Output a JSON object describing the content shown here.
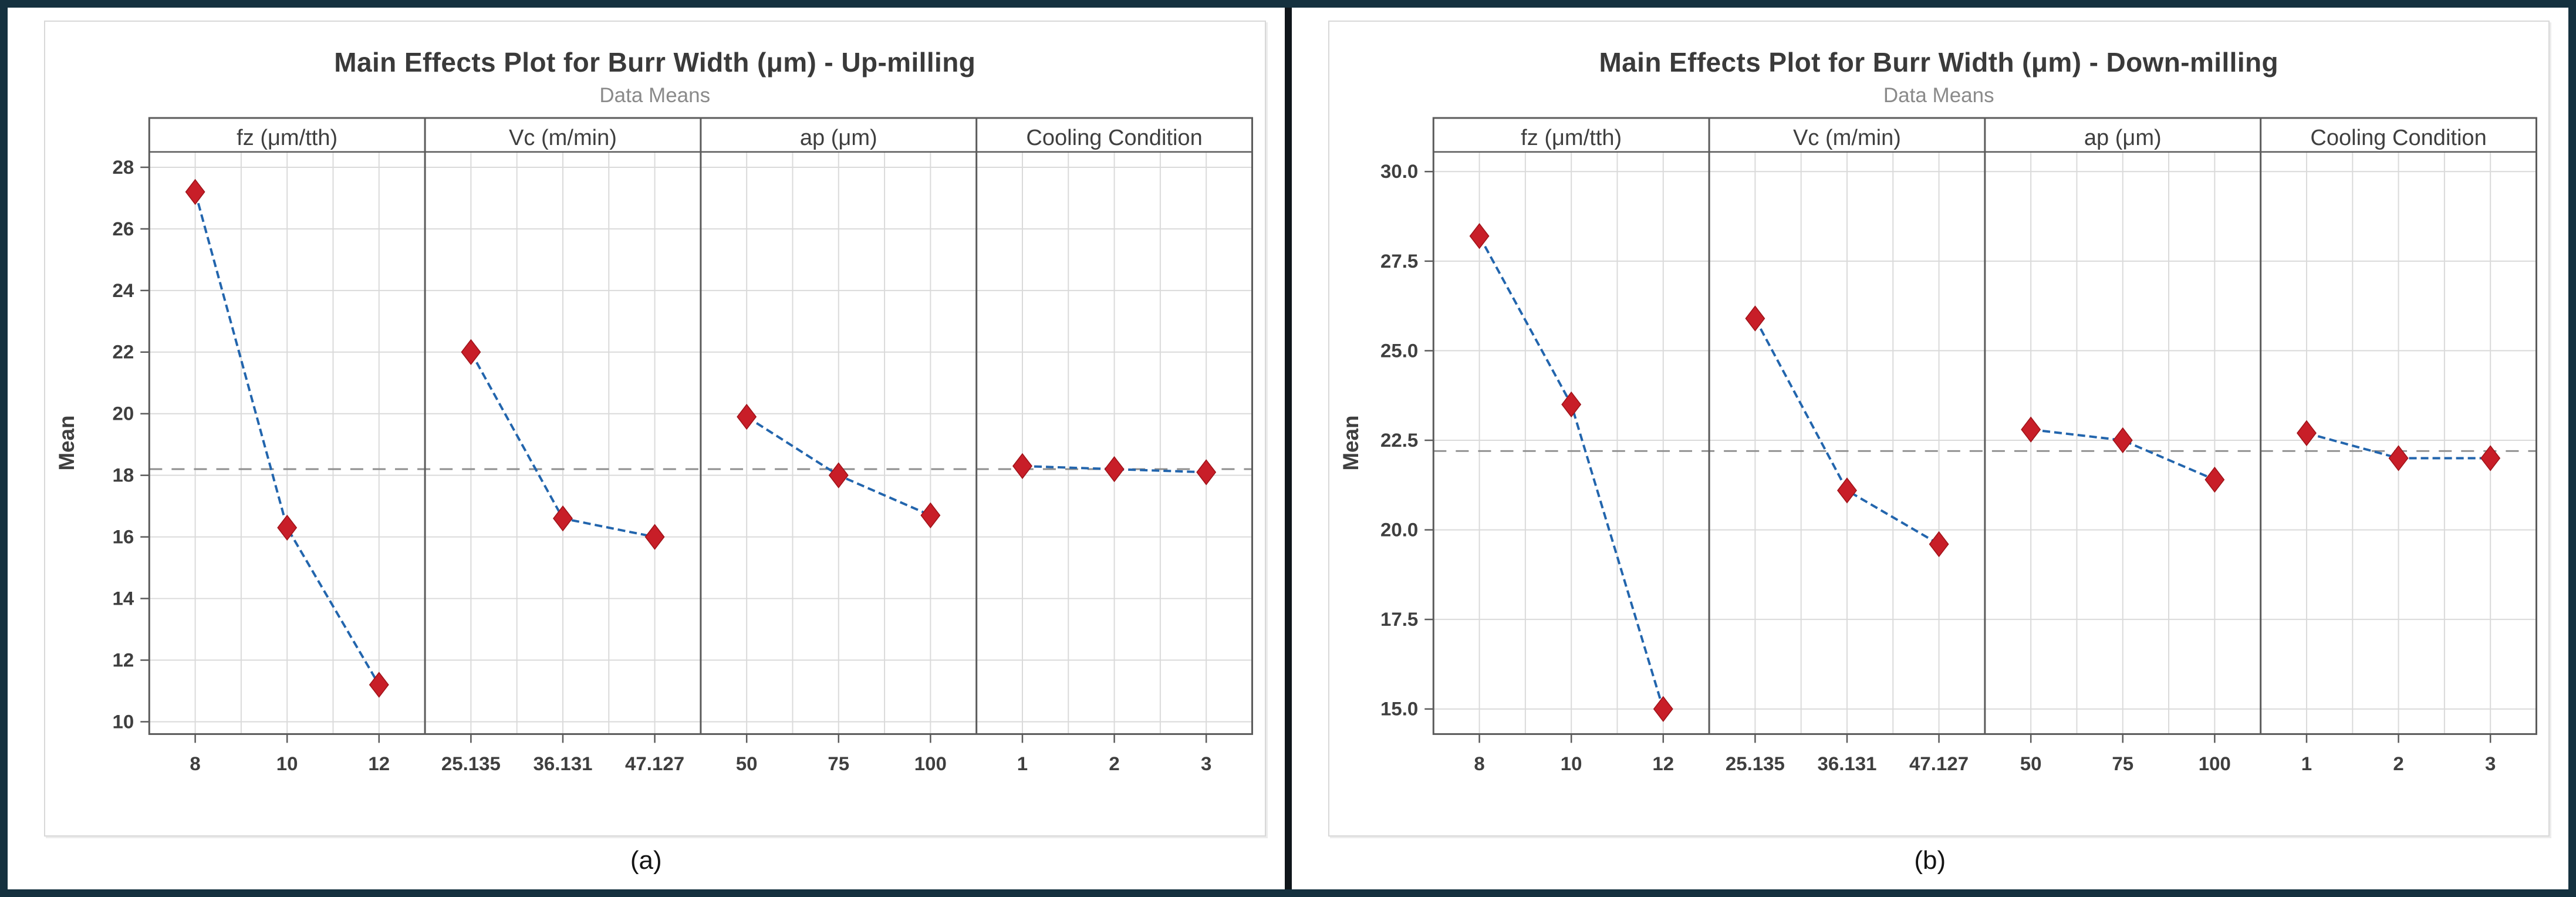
{
  "colors": {
    "outer_border": "#15313f",
    "divider": "#10161b",
    "box_border": "#d8d8d8",
    "plot_frame": "#5b5b5b",
    "gridline": "#dadada",
    "mean_line": "#8f8f8f",
    "series_line": "#2265ad",
    "marker_fill": "#c81e28",
    "marker_edge": "#9e1218",
    "title_text": "#3a3a3a",
    "subtitle_text": "#8a8a8a",
    "tick_text": "#3f3f3f",
    "caption_text": "#141414"
  },
  "chart_data": [
    {
      "type": "line",
      "title": "Main Effects Plot for Burr Width (μm) - Up-milling",
      "subtitle": "Data Means",
      "ylabel": "Mean",
      "caption": "(a)",
      "grand_mean": 18.2,
      "ylim": [
        9.6,
        28.5
      ],
      "yticks": [
        28,
        26,
        24,
        22,
        20,
        18,
        16,
        14,
        12,
        10
      ],
      "ytick_labels": [
        "28",
        "26",
        "24",
        "22",
        "20",
        "18",
        "16",
        "14",
        "12",
        "10"
      ],
      "grid": true,
      "legend": "none",
      "marker": "diamond",
      "panels": [
        {
          "label": "fz (μm/tth)",
          "categories": [
            "8",
            "10",
            "12"
          ],
          "values": [
            27.2,
            16.3,
            11.2
          ]
        },
        {
          "label": "Vc (m/min)",
          "categories": [
            "25.135",
            "36.131",
            "47.127"
          ],
          "values": [
            22.0,
            16.6,
            16.0
          ]
        },
        {
          "label": "ap (μm)",
          "categories": [
            "50",
            "75",
            "100"
          ],
          "values": [
            19.9,
            18.0,
            16.7
          ]
        },
        {
          "label": "Cooling Condition",
          "categories": [
            "1",
            "2",
            "3"
          ],
          "values": [
            18.3,
            18.2,
            18.1
          ]
        }
      ]
    },
    {
      "type": "line",
      "title": "Main Effects Plot for Burr Width (μm) - Down-milling",
      "subtitle": "Data Means",
      "ylabel": "Mean",
      "caption": "(b)",
      "grand_mean": 22.2,
      "ylim": [
        14.3,
        30.55
      ],
      "yticks": [
        30.0,
        27.5,
        25.0,
        22.5,
        20.0,
        17.5,
        15.0
      ],
      "ytick_labels": [
        "30.0",
        "27.5",
        "25.0",
        "22.5",
        "20.0",
        "17.5",
        "15.0"
      ],
      "grid": true,
      "legend": "none",
      "marker": "diamond",
      "panels": [
        {
          "label": "fz (μm/tth)",
          "categories": [
            "8",
            "10",
            "12"
          ],
          "values": [
            28.2,
            23.5,
            15.0
          ]
        },
        {
          "label": "Vc (m/min)",
          "categories": [
            "25.135",
            "36.131",
            "47.127"
          ],
          "values": [
            25.9,
            21.1,
            19.6
          ]
        },
        {
          "label": "ap (μm)",
          "categories": [
            "50",
            "75",
            "100"
          ],
          "values": [
            22.8,
            22.5,
            21.4
          ]
        },
        {
          "label": "Cooling Condition",
          "categories": [
            "1",
            "2",
            "3"
          ],
          "values": [
            22.7,
            22.0,
            22.0
          ]
        }
      ]
    }
  ]
}
